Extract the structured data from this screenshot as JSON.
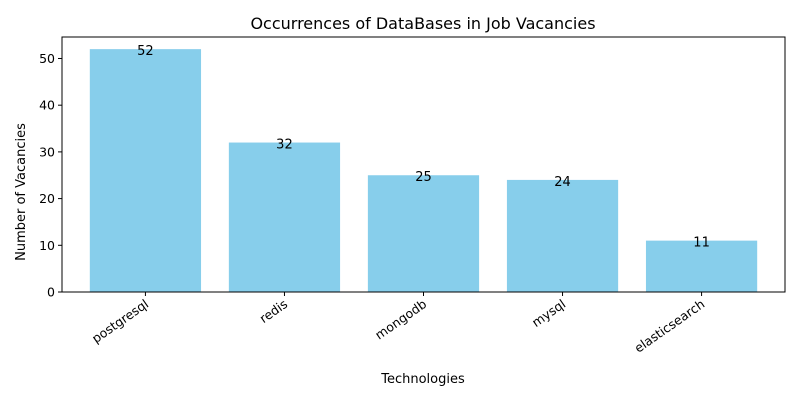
{
  "chart_data": {
    "type": "bar",
    "title": "Occurrences of DataBases in Job Vacancies",
    "xlabel": "Technologies",
    "ylabel": "Number of Vacancies",
    "categories": [
      "postgresql",
      "redis",
      "mongodb",
      "mysql",
      "elasticsearch"
    ],
    "values": [
      52,
      32,
      25,
      24,
      11
    ],
    "data_labels": [
      "52",
      "32",
      "25",
      "24",
      "11"
    ],
    "yticks": [
      0,
      10,
      20,
      30,
      40,
      50
    ],
    "ylim": [
      0,
      54.6
    ],
    "bar_color": "#87CEEB",
    "grid": false,
    "legend": "none",
    "x_tick_rotation_deg": 35
  }
}
